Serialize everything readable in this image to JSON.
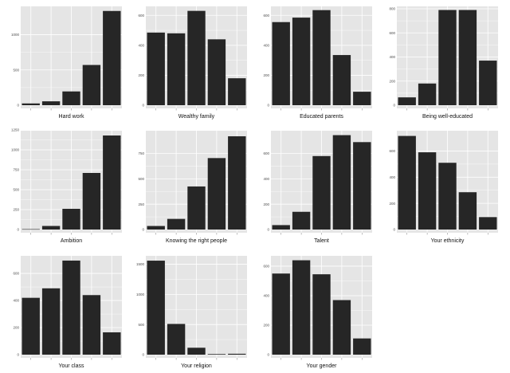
{
  "chart_data": [
    {
      "type": "bar",
      "xlabel": "Hard work",
      "ylim": [
        0,
        1400
      ],
      "yticks": [
        0,
        500,
        1000
      ],
      "values": [
        25,
        55,
        195,
        570,
        1335
      ]
    },
    {
      "type": "bar",
      "xlabel": "Wealthy family",
      "ylim": [
        0,
        660
      ],
      "yticks": [
        0,
        200,
        400,
        600
      ],
      "values": [
        485,
        480,
        630,
        440,
        180
      ]
    },
    {
      "type": "bar",
      "xlabel": "Educated parents",
      "ylim": [
        0,
        660
      ],
      "yticks": [
        0,
        200,
        400,
        600
      ],
      "values": [
        555,
        585,
        635,
        335,
        90
      ]
    },
    {
      "type": "bar",
      "xlabel": "Being well-educated",
      "ylim": [
        0,
        820
      ],
      "yticks": [
        0,
        200,
        400,
        600,
        800
      ],
      "values": [
        65,
        180,
        790,
        790,
        370
      ]
    },
    {
      "type": "bar",
      "xlabel": "Ambition",
      "ylim": [
        0,
        1240
      ],
      "yticks": [
        0,
        250,
        500,
        750,
        1000,
        1250
      ],
      "values": [
        5,
        45,
        260,
        710,
        1180
      ]
    },
    {
      "type": "bar",
      "xlabel": "Knowing the right people",
      "ylim": [
        0,
        975
      ],
      "yticks": [
        0,
        250,
        500,
        750
      ],
      "values": [
        35,
        105,
        425,
        705,
        920
      ]
    },
    {
      "type": "bar",
      "xlabel": "Talent",
      "ylim": [
        0,
        780
      ],
      "yticks": [
        0,
        200,
        400,
        600
      ],
      "values": [
        35,
        140,
        580,
        745,
        690
      ]
    },
    {
      "type": "bar",
      "xlabel": "Your ethnicity",
      "ylim": [
        0,
        755
      ],
      "yticks": [
        0,
        200,
        400,
        600
      ],
      "values": [
        715,
        590,
        510,
        285,
        95
      ]
    },
    {
      "type": "bar",
      "xlabel": "Your class",
      "ylim": [
        0,
        730
      ],
      "yticks": [
        0,
        200,
        400,
        600
      ],
      "values": [
        420,
        490,
        695,
        440,
        165
      ]
    },
    {
      "type": "bar",
      "xlabel": "Your religion",
      "ylim": [
        0,
        1640
      ],
      "yticks": [
        0,
        500,
        1000,
        1500
      ],
      "values": [
        1560,
        510,
        115,
        10,
        15
      ]
    },
    {
      "type": "bar",
      "xlabel": "Your gender",
      "ylim": [
        0,
        670
      ],
      "yticks": [
        0,
        200,
        400,
        600
      ],
      "values": [
        550,
        640,
        545,
        370,
        110
      ]
    }
  ],
  "colors": {
    "panel_bg": "#e5e5e5",
    "grid": "#ffffff",
    "bar": "#262626"
  }
}
